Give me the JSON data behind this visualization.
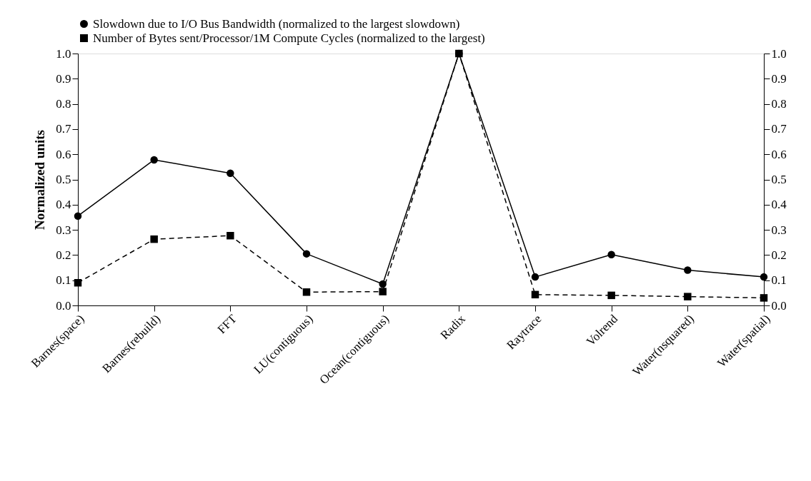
{
  "chart_data": {
    "type": "line",
    "ylabel": "Normalized units",
    "categories": [
      "Barnes(space)",
      "Barnes(rebuild)",
      "FFT",
      "LU(contiguous)",
      "Ocean(contiguous)",
      "Radix",
      "Raytrace",
      "Volrend",
      "Water(nsquared)",
      "Water(spatial)"
    ],
    "series": [
      {
        "name": "Slowdown due to I/O Bus Bandwidth (normalized to the largest slowdown)",
        "color": "#000000",
        "marker": "circle",
        "line_style": "solid",
        "values": [
          0.355,
          0.578,
          0.525,
          0.205,
          0.085,
          1.0,
          0.113,
          0.202,
          0.14,
          0.113
        ]
      },
      {
        "name": "Number of Bytes sent/Processor/1M Compute Cycles (normalized to the largest)",
        "color": "#000000",
        "marker": "square",
        "line_style": "dashed",
        "values": [
          0.09,
          0.263,
          0.277,
          0.053,
          0.055,
          1.0,
          0.043,
          0.04,
          0.035,
          0.03
        ]
      }
    ],
    "ylim": [
      0,
      1.0
    ],
    "yticks": [
      "0.0",
      0.1,
      0.2,
      0.3,
      0.4,
      0.5,
      0.6,
      0.7,
      0.8,
      0.9,
      "1.0"
    ],
    "y2lim": [
      0,
      1.0
    ],
    "y2ticks": [
      "0.0",
      0.1,
      0.2,
      0.3,
      0.4,
      0.5,
      0.6,
      0.7,
      0.8,
      0.9,
      "1.0"
    ],
    "grid": false,
    "legend": "top"
  }
}
